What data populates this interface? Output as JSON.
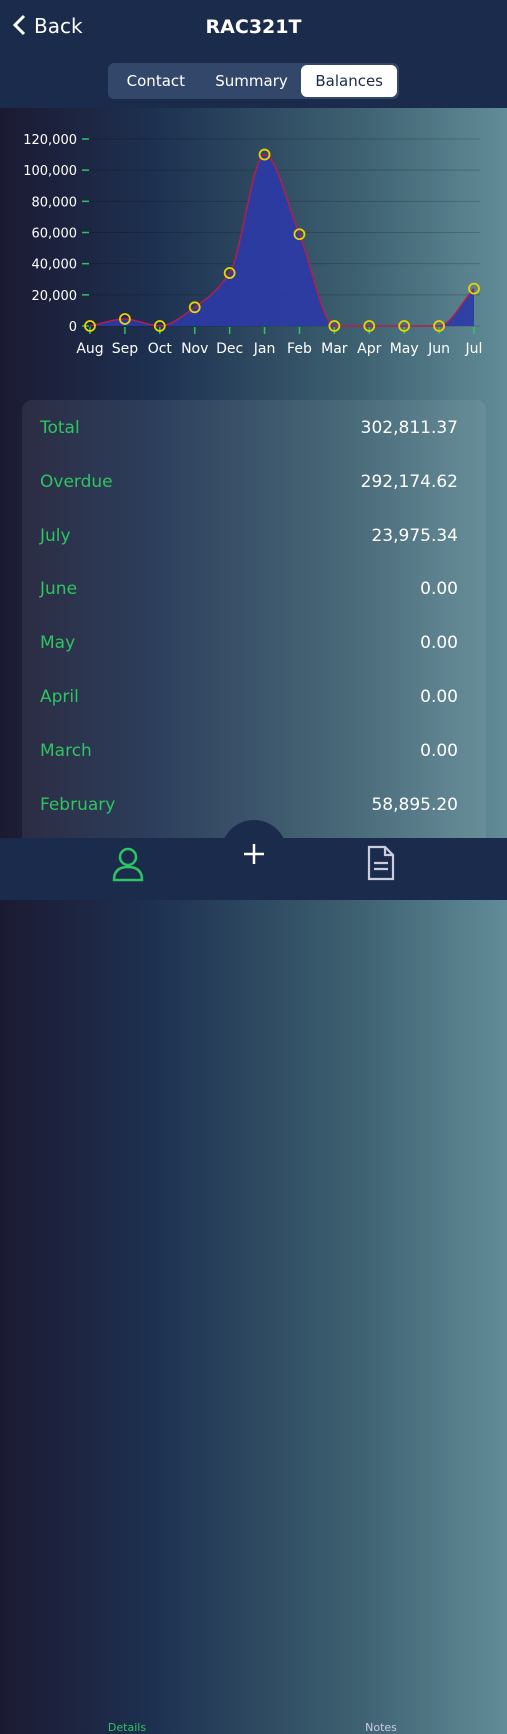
{
  "header": {
    "back": "Back",
    "title": "RAC321T"
  },
  "tabs": [
    "Contact",
    "Summary",
    "Balances"
  ],
  "chart_data": {
    "type": "area",
    "categories": [
      "Aug",
      "Sep",
      "Oct",
      "Nov",
      "Dec",
      "Jan",
      "Feb",
      "Mar",
      "Apr",
      "May",
      "Jun",
      "Jul"
    ],
    "values": [
      0,
      4500,
      0,
      12000,
      34000,
      110000,
      58895.2,
      0,
      0,
      0,
      0,
      23975.34
    ],
    "color": "#2b3aa6",
    "line_color": "#b0204f",
    "marker_color": "#e8d500",
    "ylim": [
      0,
      120000
    ],
    "yticks": [
      0,
      {
        "value": 20000,
        "label": "20,000"
      },
      {
        "value": 40000,
        "label": "40,000"
      },
      {
        "value": 60000,
        "label": "60,000"
      },
      {
        "value": 80000,
        "label": "80,000"
      },
      {
        "value": 100000,
        "label": "100,000"
      },
      {
        "value": 120000,
        "label": "120,000"
      }
    ],
    "grid": true
  },
  "table": {
    "rows": [
      [
        "Total",
        "302,811.37"
      ],
      [
        "Overdue",
        "292,174.62"
      ],
      [
        "July",
        "23,975.34"
      ],
      [
        "June",
        "0.00"
      ],
      [
        "May",
        "0.00"
      ],
      [
        "April",
        "0.00"
      ],
      [
        "March",
        "0.00"
      ],
      [
        "February",
        "58,895.20"
      ]
    ]
  },
  "nav": [
    "Details",
    "Notes"
  ]
}
